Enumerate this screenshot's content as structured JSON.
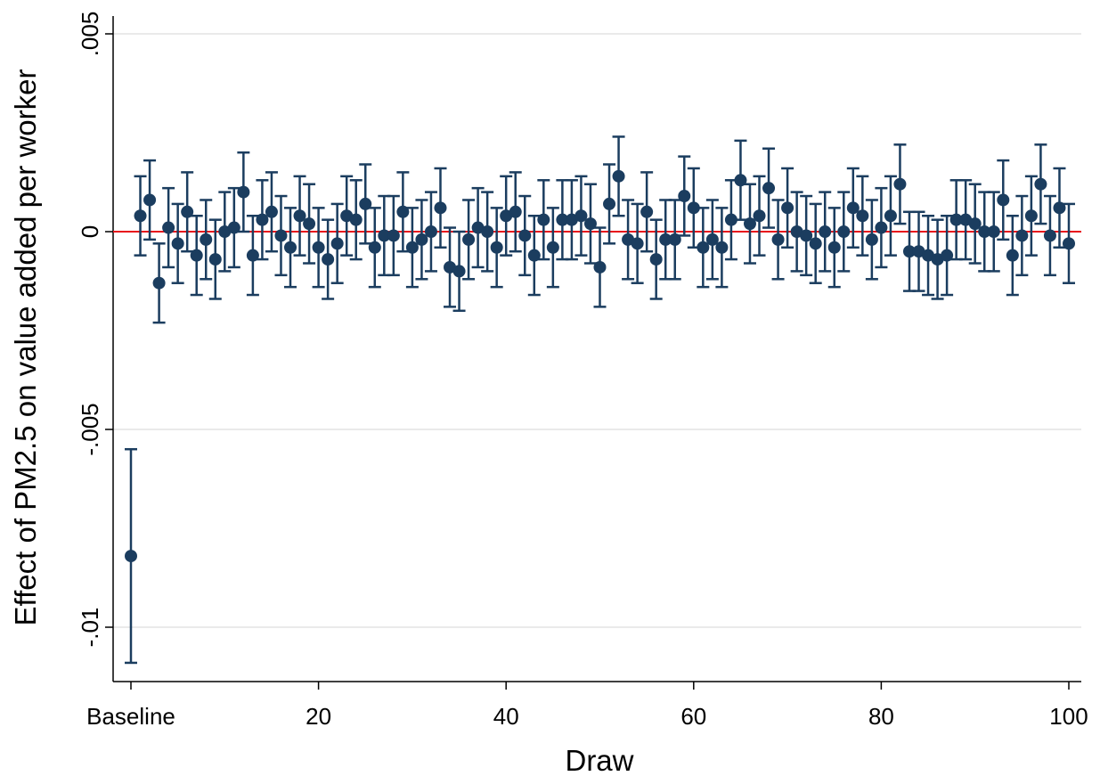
{
  "chart_data": {
    "type": "scatter",
    "xlabel": "Draw",
    "ylabel": "Effect of PM2.5 on value added per worker",
    "xlim": [
      -2,
      101
    ],
    "ylim": [
      -0.0113,
      0.0055
    ],
    "x_ticks": [
      {
        "value": 0,
        "label": "Baseline"
      },
      {
        "value": 20,
        "label": "20"
      },
      {
        "value": 40,
        "label": "40"
      },
      {
        "value": 60,
        "label": "60"
      },
      {
        "value": 80,
        "label": "80"
      },
      {
        "value": 100,
        "label": "100"
      }
    ],
    "y_ticks": [
      {
        "value": 0.005,
        "label": ".005"
      },
      {
        "value": 0,
        "label": "0"
      },
      {
        "value": -0.005,
        "label": "-.005"
      },
      {
        "value": -0.01,
        "label": "-.01"
      }
    ],
    "grid": true,
    "reference_line": {
      "y": 0,
      "color": "#e8141c"
    },
    "colors": {
      "marker": "#1b3d5f",
      "grid": "#e3e3e3",
      "axis": "#000000"
    },
    "baseline": {
      "x": 0,
      "y": -0.0082,
      "lo": -0.0109,
      "hi": -0.0055
    },
    "ci_half_width": 0.001,
    "draws": {
      "x": [
        1,
        2,
        3,
        4,
        5,
        6,
        7,
        8,
        9,
        10,
        11,
        12,
        13,
        14,
        15,
        16,
        17,
        18,
        19,
        20,
        21,
        22,
        23,
        24,
        25,
        26,
        27,
        28,
        29,
        30,
        31,
        32,
        33,
        34,
        35,
        36,
        37,
        38,
        39,
        40,
        41,
        42,
        43,
        44,
        45,
        46,
        47,
        48,
        49,
        50,
        51,
        52,
        53,
        54,
        55,
        56,
        57,
        58,
        59,
        60,
        61,
        62,
        63,
        64,
        65,
        66,
        67,
        68,
        69,
        70,
        71,
        72,
        73,
        74,
        75,
        76,
        77,
        78,
        79,
        80,
        81,
        82,
        83,
        84,
        85,
        86,
        87,
        88,
        89,
        90,
        91,
        92,
        93,
        94,
        95,
        96,
        97,
        98,
        99,
        100
      ],
      "y": [
        0.0004,
        0.0008,
        -0.0013,
        0.0001,
        -0.0003,
        0.0005,
        -0.0006,
        -0.0002,
        -0.0007,
        0.0,
        0.0001,
        0.001,
        -0.0006,
        0.0003,
        0.0005,
        -0.0001,
        -0.0004,
        0.0004,
        0.0002,
        -0.0004,
        -0.0007,
        -0.0003,
        0.0004,
        0.0003,
        0.0007,
        -0.0004,
        -0.0001,
        -0.0001,
        0.0005,
        -0.0004,
        -0.0002,
        0.0,
        0.0006,
        -0.0009,
        -0.001,
        -0.0002,
        0.0001,
        0.0,
        -0.0004,
        0.0004,
        0.0005,
        -0.0001,
        -0.0006,
        0.0003,
        -0.0004,
        0.0003,
        0.0003,
        0.0004,
        0.0002,
        -0.0009,
        0.0007,
        0.0014,
        -0.0002,
        -0.0003,
        0.0005,
        -0.0007,
        -0.0002,
        -0.0002,
        0.0009,
        0.0006,
        -0.0004,
        -0.0002,
        -0.0004,
        0.0003,
        0.0013,
        0.0002,
        0.0004,
        0.0011,
        -0.0002,
        0.0006,
        0.0,
        -0.0001,
        -0.0003,
        0.0,
        -0.0004,
        0.0,
        0.0006,
        0.0004,
        -0.0002,
        0.0001,
        0.0004,
        0.0012,
        -0.0005,
        -0.0005,
        -0.0006,
        -0.0007,
        -0.0006,
        0.0003,
        0.0003,
        0.0002,
        0.0,
        0.0,
        0.0008,
        -0.0006,
        -0.0001,
        0.0004,
        0.0012,
        -0.0001,
        0.0006,
        -0.0003
      ]
    }
  }
}
